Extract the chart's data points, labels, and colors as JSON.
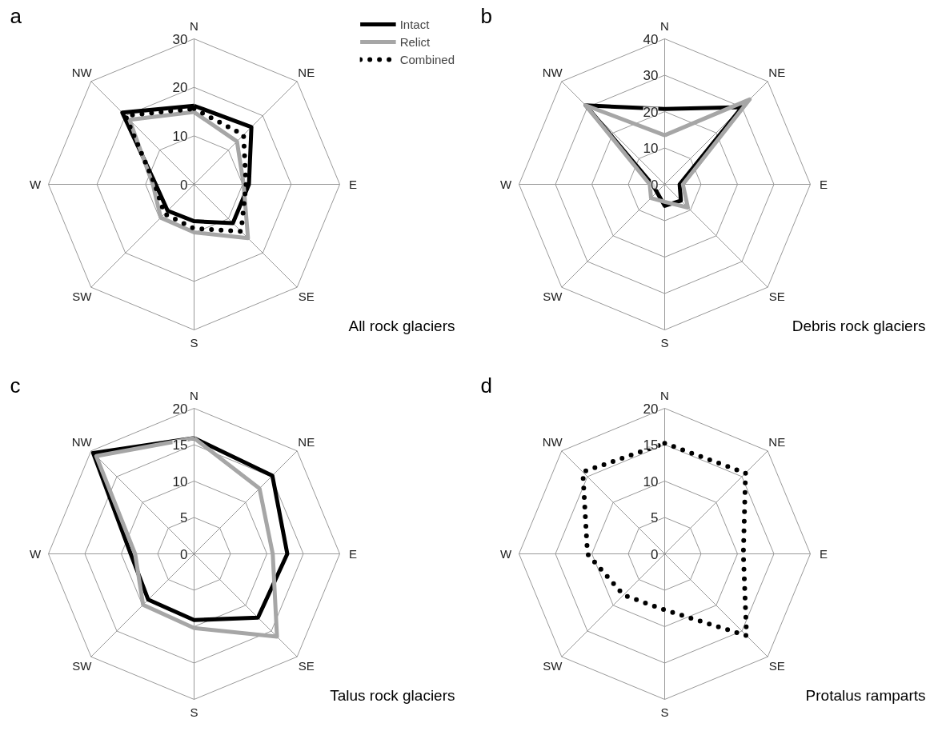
{
  "chart_data": [
    {
      "type": "radar",
      "title": "a",
      "categories": [
        "N",
        "NE",
        "E",
        "SE",
        "S",
        "SW",
        "W",
        "NW"
      ],
      "ylim": [
        0,
        30
      ],
      "yticks": [
        0,
        10,
        20,
        30
      ],
      "grid": true,
      "legend": "top right",
      "annotations": [
        "All rock glaciers"
      ],
      "series": [
        {
          "name": "Intact",
          "color": "#000000",
          "line_style": "solid",
          "values": [
            16.2,
            16.7,
            11.3,
            11.3,
            7.6,
            7.7,
            7.9,
            20.9
          ]
        },
        {
          "name": "Relict",
          "color": "#a6a6a6",
          "line_style": "solid",
          "values": [
            14.9,
            12.5,
            10.2,
            15.7,
            9.9,
            9.7,
            8.5,
            18.8
          ]
        },
        {
          "name": "Combined",
          "color": "#000000",
          "line_style": "dotted",
          "values": [
            15.6,
            14.4,
            10.7,
            13.7,
            9.1,
            8.6,
            8.1,
            20.0
          ]
        }
      ]
    },
    {
      "type": "radar",
      "title": "b",
      "categories": [
        "N",
        "NE",
        "E",
        "SE",
        "S",
        "SW",
        "W",
        "NW"
      ],
      "ylim": [
        0,
        40
      ],
      "yticks": [
        0,
        10,
        20,
        30,
        40
      ],
      "grid": true,
      "annotations": [
        "Debris rock glaciers"
      ],
      "series": [
        {
          "color": "#000000",
          "line_style": "solid",
          "values": [
            20.7,
            30,
            4.1,
            6.3,
            5.9,
            3,
            3.4,
            30.7
          ]
        },
        {
          "color": "#a6a6a6",
          "line_style": "solid",
          "values": [
            13.5,
            33,
            5,
            9,
            4.8,
            5.3,
            4.1,
            30.7
          ]
        }
      ]
    },
    {
      "type": "radar",
      "title": "c",
      "categories": [
        "N",
        "NE",
        "E",
        "SE",
        "S",
        "SW",
        "W",
        "NW"
      ],
      "ylim": [
        0,
        20
      ],
      "yticks": [
        0,
        5,
        10,
        15,
        20
      ],
      "grid": true,
      "annotations": [
        "Talus rock glaciers"
      ],
      "series": [
        {
          "color": "#000000",
          "line_style": "solid",
          "values": [
            15.9,
            15.2,
            12.8,
            12.4,
            9.1,
            8.9,
            8.7,
            19.6
          ]
        },
        {
          "color": "#a6a6a6",
          "line_style": "solid",
          "values": [
            15.9,
            12.7,
            10.8,
            16.1,
            10.2,
            9.9,
            8.1,
            19.0
          ]
        }
      ]
    },
    {
      "type": "radar",
      "title": "d",
      "categories": [
        "N",
        "NE",
        "E",
        "SE",
        "S",
        "SW",
        "W",
        "NW"
      ],
      "ylim": [
        0,
        20
      ],
      "yticks": [
        0,
        5,
        10,
        15,
        20
      ],
      "grid": true,
      "annotations": [
        "Protalus ramparts"
      ],
      "series": [
        {
          "color": "#000000",
          "line_style": "dotted",
          "values": [
            15.2,
            15.7,
            10.8,
            15.9,
            7.7,
            8.0,
            10.6,
            15.9
          ]
        }
      ]
    }
  ]
}
